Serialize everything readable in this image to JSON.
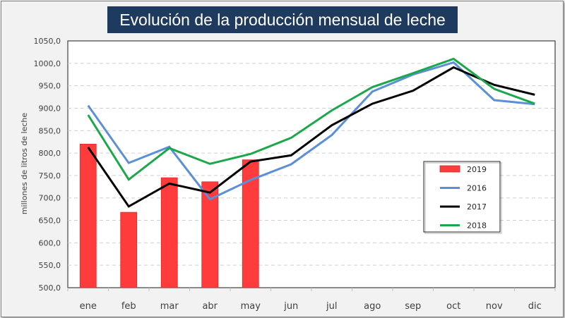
{
  "chart_data": {
    "type": "bar+line",
    "title": "Evolución de la producción mensual de leche",
    "xlabel": "",
    "ylabel": "millones de litros de leche",
    "ylim": [
      500,
      1050
    ],
    "ytick_step": 50,
    "ytick_labels": [
      "500,0",
      "550,0",
      "600,0",
      "650,0",
      "700,0",
      "750,0",
      "800,0",
      "850,0",
      "900,0",
      "950,0",
      "1000,0",
      "1050,0"
    ],
    "grid": "horizontal-dashed",
    "legend_position": "right-center",
    "categories": [
      "ene",
      "feb",
      "mar",
      "abr",
      "may",
      "jun",
      "jul",
      "ago",
      "sep",
      "oct",
      "nov",
      "dic"
    ],
    "bars": {
      "name": "2019",
      "color": "#ff3b3b",
      "values": [
        820,
        668,
        745,
        736,
        785
      ]
    },
    "series": [
      {
        "name": "2016",
        "color": "#5b8fd6",
        "values": [
          906,
          778,
          814,
          697,
          740,
          775,
          840,
          937,
          975,
          1002,
          918,
          909
        ]
      },
      {
        "name": "2017",
        "color": "#000000",
        "values": [
          813,
          681,
          732,
          712,
          781,
          795,
          862,
          910,
          939,
          991,
          952,
          930
        ]
      },
      {
        "name": "2018",
        "color": "#1aa84a",
        "values": [
          885,
          741,
          811,
          776,
          798,
          834,
          895,
          947,
          978,
          1010,
          943,
          910
        ]
      }
    ],
    "legend": [
      "2019",
      "2016",
      "2017",
      "2018"
    ]
  }
}
